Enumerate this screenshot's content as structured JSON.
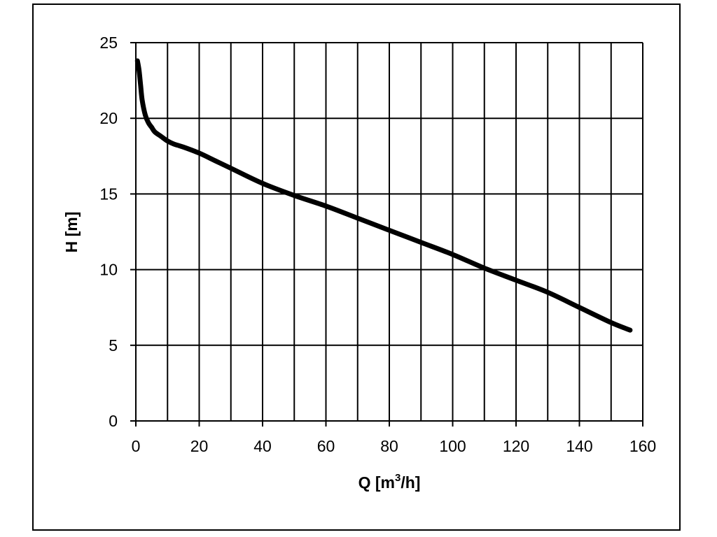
{
  "chart_data": {
    "type": "line",
    "title": "",
    "xlabel_main": "Q [m",
    "xlabel_sup": "3",
    "xlabel_end": "/h]",
    "ylabel": "H [m]",
    "xlim": [
      0,
      160
    ],
    "ylim": [
      0,
      25
    ],
    "x_ticks": [
      0,
      20,
      40,
      60,
      80,
      100,
      120,
      140,
      160
    ],
    "y_ticks": [
      0,
      5,
      10,
      15,
      20,
      25
    ],
    "x_grid_step": 10,
    "y_grid_step": 5,
    "grid": true,
    "legend": "none",
    "line_color": "#000000",
    "series": [
      {
        "x": [
          0.5,
          1,
          1.5,
          2,
          3,
          4,
          5,
          6,
          8,
          10,
          12,
          15,
          20,
          25,
          30,
          40,
          50,
          60,
          70,
          80,
          90,
          100,
          110,
          120,
          130,
          140,
          150,
          156
        ],
        "y": [
          23.8,
          23.2,
          22.2,
          21.2,
          20.2,
          19.7,
          19.4,
          19.1,
          18.8,
          18.5,
          18.3,
          18.1,
          17.7,
          17.2,
          16.7,
          15.7,
          14.9,
          14.2,
          13.4,
          12.6,
          11.8,
          11.0,
          10.1,
          9.3,
          8.5,
          7.5,
          6.5,
          6.0
        ]
      }
    ]
  }
}
